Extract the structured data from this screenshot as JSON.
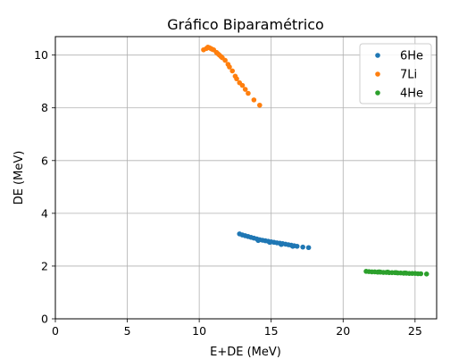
{
  "chart_data": {
    "type": "scatter",
    "title": "Gráfico Biparamétrico",
    "xlabel": "E+DE (MeV)",
    "ylabel": "DE (MeV)",
    "xlim": [
      0,
      26.5
    ],
    "ylim": [
      0,
      10.7
    ],
    "xticks": [
      0,
      5,
      10,
      15,
      20,
      25
    ],
    "yticks": [
      0,
      2,
      4,
      6,
      8,
      10
    ],
    "grid": true,
    "legend_position": "top-right",
    "series": [
      {
        "name": "6He",
        "color": "#1f77b4",
        "x": [
          12.8,
          13.0,
          13.2,
          13.4,
          13.6,
          13.8,
          14.0,
          14.2,
          14.4,
          14.6,
          14.8,
          15.0,
          15.2,
          15.4,
          15.6,
          15.8,
          16.0,
          16.2,
          16.4,
          16.6,
          16.8,
          17.2,
          17.6,
          14.1,
          14.9,
          15.7,
          16.5
        ],
        "y": [
          3.22,
          3.18,
          3.15,
          3.12,
          3.09,
          3.06,
          3.03,
          3.0,
          2.98,
          2.96,
          2.94,
          2.92,
          2.9,
          2.88,
          2.87,
          2.85,
          2.83,
          2.81,
          2.79,
          2.77,
          2.75,
          2.72,
          2.7,
          2.97,
          2.9,
          2.82,
          2.75
        ]
      },
      {
        "name": "7Li",
        "color": "#ff7f0e",
        "x": [
          10.3,
          10.5,
          10.6,
          10.7,
          10.8,
          11.0,
          11.2,
          11.3,
          11.4,
          11.6,
          11.8,
          12.0,
          12.1,
          12.3,
          12.5,
          12.6,
          12.8,
          13.0,
          13.2,
          13.4,
          13.8,
          14.2,
          10.9,
          11.5
        ],
        "y": [
          10.2,
          10.25,
          10.3,
          10.28,
          10.25,
          10.2,
          10.1,
          10.05,
          10.0,
          9.9,
          9.8,
          9.65,
          9.55,
          9.4,
          9.2,
          9.1,
          8.95,
          8.85,
          8.7,
          8.55,
          8.3,
          8.1,
          10.22,
          9.95
        ]
      },
      {
        "name": "4He",
        "color": "#2ca02c",
        "x": [
          21.6,
          21.8,
          22.0,
          22.2,
          22.4,
          22.6,
          22.8,
          23.0,
          23.2,
          23.4,
          23.6,
          23.8,
          24.0,
          24.2,
          24.4,
          24.6,
          24.8,
          25.0,
          25.2,
          25.4,
          25.8,
          22.5,
          23.1,
          23.7,
          24.3
        ],
        "y": [
          1.8,
          1.79,
          1.78,
          1.78,
          1.77,
          1.77,
          1.76,
          1.76,
          1.75,
          1.75,
          1.75,
          1.74,
          1.74,
          1.73,
          1.73,
          1.72,
          1.72,
          1.72,
          1.71,
          1.71,
          1.7,
          1.78,
          1.77,
          1.75,
          1.74
        ]
      }
    ]
  }
}
